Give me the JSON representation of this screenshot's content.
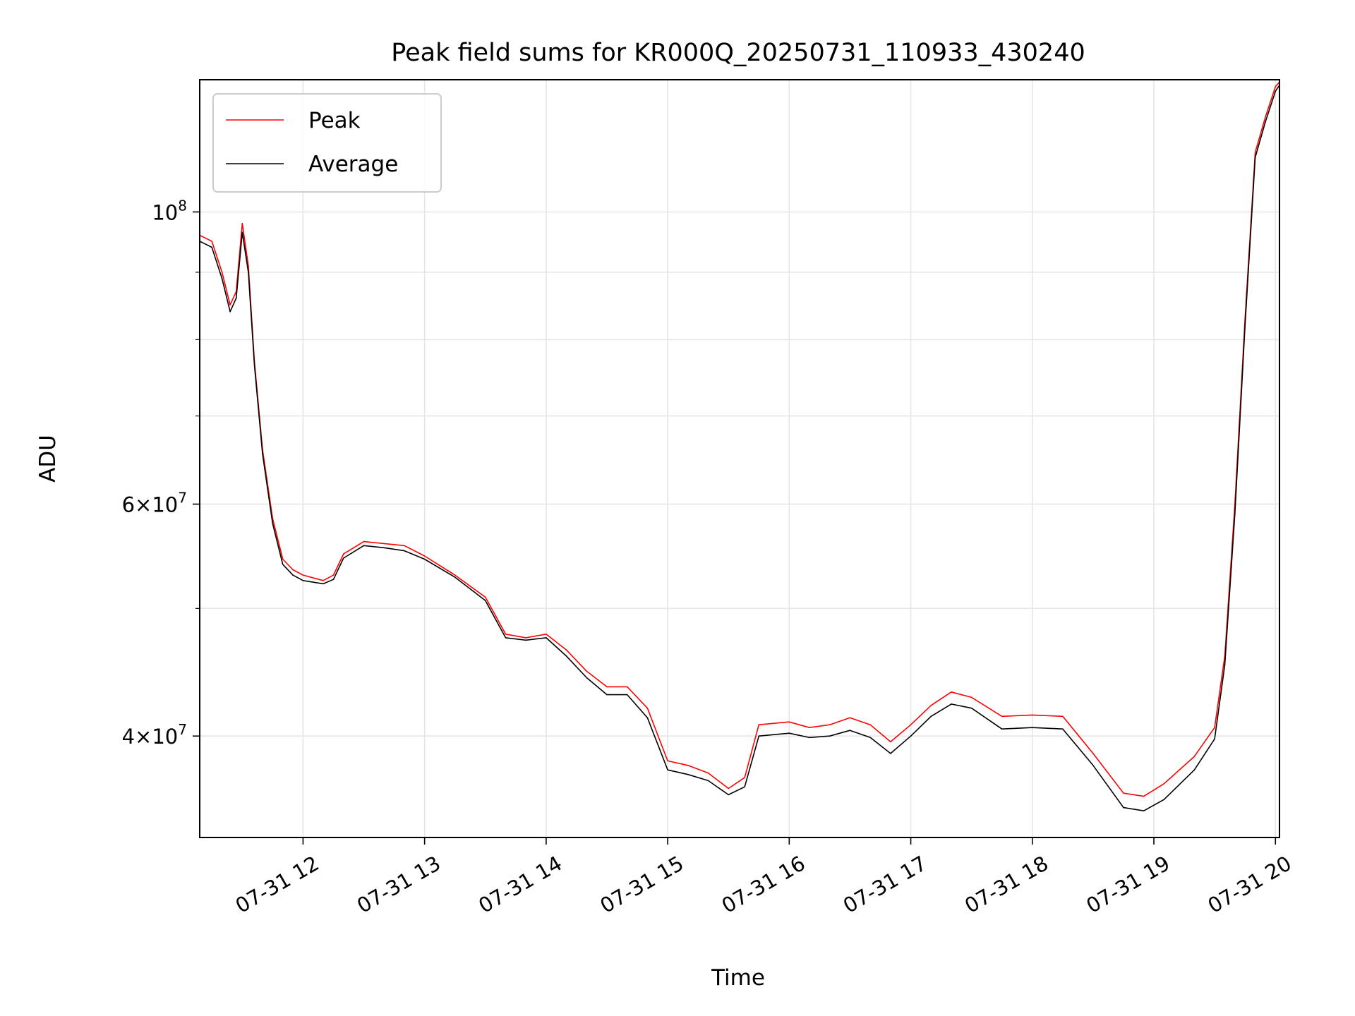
{
  "chart_data": {
    "type": "line",
    "title": "Peak field sums for KR000Q_20250731_110933_430240",
    "xlabel": "Time",
    "ylabel": "ADU",
    "y_scale": "log",
    "grid": true,
    "legend_placement": "top-left",
    "xlim": [
      "2025-07-31 11:09",
      "2025-07-31 20:02"
    ],
    "ylim": [
      33500000,
      126000000
    ],
    "x_ticks": [
      {
        "value": "2025-07-31 12:00",
        "label": "07-31 12"
      },
      {
        "value": "2025-07-31 13:00",
        "label": "07-31 13"
      },
      {
        "value": "2025-07-31 14:00",
        "label": "07-31 14"
      },
      {
        "value": "2025-07-31 15:00",
        "label": "07-31 15"
      },
      {
        "value": "2025-07-31 16:00",
        "label": "07-31 16"
      },
      {
        "value": "2025-07-31 17:00",
        "label": "07-31 17"
      },
      {
        "value": "2025-07-31 18:00",
        "label": "07-31 18"
      },
      {
        "value": "2025-07-31 19:00",
        "label": "07-31 19"
      },
      {
        "value": "2025-07-31 20:00",
        "label": "07-31 20"
      }
    ],
    "y_major_ticks": [
      {
        "value": 40000000,
        "mantissa": "4",
        "exponent": "7"
      },
      {
        "value": 60000000,
        "mantissa": "6",
        "exponent": "7"
      },
      {
        "value": 100000000,
        "mantissa": "",
        "exponent": "8"
      }
    ],
    "y_minor_ticks": [
      30000000,
      50000000,
      70000000,
      80000000,
      90000000
    ],
    "series": [
      {
        "name": "Peak",
        "color": "#ff0000",
        "x": [
          "2025-07-31 11:09",
          "2025-07-31 11:12",
          "2025-07-31 11:15",
          "2025-07-31 11:20",
          "2025-07-31 11:24",
          "2025-07-31 11:27",
          "2025-07-31 11:30",
          "2025-07-31 11:33",
          "2025-07-31 11:36",
          "2025-07-31 11:40",
          "2025-07-31 11:45",
          "2025-07-31 11:50",
          "2025-07-31 11:55",
          "2025-07-31 12:00",
          "2025-07-31 12:10",
          "2025-07-31 12:15",
          "2025-07-31 12:20",
          "2025-07-31 12:30",
          "2025-07-31 12:40",
          "2025-07-31 12:50",
          "2025-07-31 13:00",
          "2025-07-31 13:15",
          "2025-07-31 13:30",
          "2025-07-31 13:40",
          "2025-07-31 13:50",
          "2025-07-31 14:00",
          "2025-07-31 14:10",
          "2025-07-31 14:20",
          "2025-07-31 14:30",
          "2025-07-31 14:40",
          "2025-07-31 14:50",
          "2025-07-31 15:00",
          "2025-07-31 15:10",
          "2025-07-31 15:20",
          "2025-07-31 15:30",
          "2025-07-31 15:38",
          "2025-07-31 15:45",
          "2025-07-31 16:00",
          "2025-07-31 16:10",
          "2025-07-31 16:20",
          "2025-07-31 16:30",
          "2025-07-31 16:40",
          "2025-07-31 16:50",
          "2025-07-31 17:00",
          "2025-07-31 17:10",
          "2025-07-31 17:20",
          "2025-07-31 17:30",
          "2025-07-31 17:45",
          "2025-07-31 18:00",
          "2025-07-31 18:15",
          "2025-07-31 18:30",
          "2025-07-31 18:45",
          "2025-07-31 18:55",
          "2025-07-31 19:05",
          "2025-07-31 19:20",
          "2025-07-31 19:30",
          "2025-07-31 19:35",
          "2025-07-31 19:40",
          "2025-07-31 19:45",
          "2025-07-31 19:50",
          "2025-07-31 19:55",
          "2025-07-31 20:00",
          "2025-07-31 20:02"
        ],
        "values": [
          96000000,
          95500000,
          95000000,
          90000000,
          85000000,
          87000000,
          98000000,
          91000000,
          77000000,
          66000000,
          58500000,
          54500000,
          53500000,
          53000000,
          52500000,
          53000000,
          55000000,
          56200000,
          56000000,
          55800000,
          54800000,
          53000000,
          51000000,
          47800000,
          47500000,
          47800000,
          46500000,
          44800000,
          43600000,
          43600000,
          42000000,
          38300000,
          38000000,
          37500000,
          36500000,
          37200000,
          40800000,
          41000000,
          40600000,
          40800000,
          41300000,
          40800000,
          39600000,
          40800000,
          42200000,
          43200000,
          42800000,
          41400000,
          41500000,
          41400000,
          38800000,
          36200000,
          36000000,
          36800000,
          38600000,
          40600000,
          46000000,
          60000000,
          83000000,
          111000000,
          118000000,
          124500000,
          125500000
        ]
      },
      {
        "name": "Average",
        "color": "#000000",
        "x": [
          "2025-07-31 11:09",
          "2025-07-31 11:12",
          "2025-07-31 11:15",
          "2025-07-31 11:20",
          "2025-07-31 11:24",
          "2025-07-31 11:27",
          "2025-07-31 11:30",
          "2025-07-31 11:33",
          "2025-07-31 11:36",
          "2025-07-31 11:40",
          "2025-07-31 11:45",
          "2025-07-31 11:50",
          "2025-07-31 11:55",
          "2025-07-31 12:00",
          "2025-07-31 12:10",
          "2025-07-31 12:15",
          "2025-07-31 12:20",
          "2025-07-31 12:30",
          "2025-07-31 12:40",
          "2025-07-31 12:50",
          "2025-07-31 13:00",
          "2025-07-31 13:15",
          "2025-07-31 13:30",
          "2025-07-31 13:40",
          "2025-07-31 13:50",
          "2025-07-31 14:00",
          "2025-07-31 14:10",
          "2025-07-31 14:20",
          "2025-07-31 14:30",
          "2025-07-31 14:40",
          "2025-07-31 14:50",
          "2025-07-31 15:00",
          "2025-07-31 15:10",
          "2025-07-31 15:20",
          "2025-07-31 15:30",
          "2025-07-31 15:38",
          "2025-07-31 15:45",
          "2025-07-31 16:00",
          "2025-07-31 16:10",
          "2025-07-31 16:20",
          "2025-07-31 16:30",
          "2025-07-31 16:40",
          "2025-07-31 16:50",
          "2025-07-31 17:00",
          "2025-07-31 17:10",
          "2025-07-31 17:20",
          "2025-07-31 17:30",
          "2025-07-31 17:45",
          "2025-07-31 18:00",
          "2025-07-31 18:15",
          "2025-07-31 18:30",
          "2025-07-31 18:45",
          "2025-07-31 18:55",
          "2025-07-31 19:05",
          "2025-07-31 19:20",
          "2025-07-31 19:30",
          "2025-07-31 19:35",
          "2025-07-31 19:40",
          "2025-07-31 19:45",
          "2025-07-31 19:50",
          "2025-07-31 19:55",
          "2025-07-31 20:00",
          "2025-07-31 20:02"
        ],
        "values": [
          95000000,
          94500000,
          94000000,
          89000000,
          84000000,
          86000000,
          96500000,
          90000000,
          76500000,
          65500000,
          58000000,
          54000000,
          53000000,
          52500000,
          52200000,
          52600000,
          54600000,
          55800000,
          55600000,
          55300000,
          54500000,
          52800000,
          50700000,
          47500000,
          47300000,
          47500000,
          46000000,
          44300000,
          43000000,
          43000000,
          41300000,
          37700000,
          37400000,
          37000000,
          36100000,
          36600000,
          40000000,
          40200000,
          39900000,
          40000000,
          40400000,
          39900000,
          38800000,
          40000000,
          41400000,
          42300000,
          42000000,
          40500000,
          40600000,
          40500000,
          38000000,
          35300000,
          35100000,
          35800000,
          37700000,
          39800000,
          45300000,
          59000000,
          82000000,
          110000000,
          117000000,
          123500000,
          124800000
        ]
      }
    ]
  }
}
